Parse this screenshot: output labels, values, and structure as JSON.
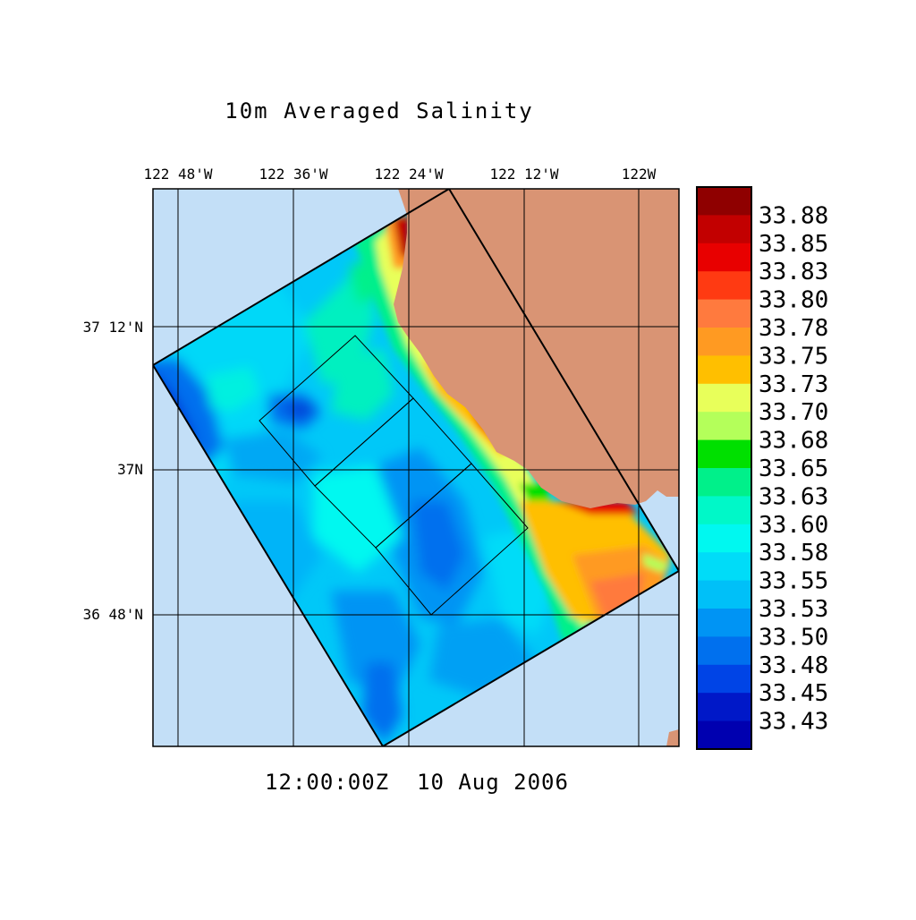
{
  "title": "10m Averaged Salinity",
  "timestamp": "12:00:00Z  10 Aug 2006",
  "lon_labels": [
    "122 48'W",
    "122 36'W",
    "122 24'W",
    "122 12'W",
    "122W"
  ],
  "lat_labels": [
    "37 12'N",
    "37N",
    "36 48'N"
  ],
  "colors": {
    "ocean_background": "#c3dff7",
    "land": "#d99474"
  },
  "colorbar": {
    "labels": [
      "33.88",
      "33.85",
      "33.83",
      "33.80",
      "33.78",
      "33.75",
      "33.73",
      "33.70",
      "33.68",
      "33.65",
      "33.63",
      "33.60",
      "33.58",
      "33.55",
      "33.53",
      "33.50",
      "33.48",
      "33.45",
      "33.43"
    ],
    "colors": [
      "#8f0000",
      "#c20000",
      "#e80000",
      "#ff3a12",
      "#ff7a3e",
      "#ff9a22",
      "#ffbf00",
      "#e8ff5a",
      "#b4ff5a",
      "#00e000",
      "#00f08a",
      "#00f8c8",
      "#00f8f0",
      "#00dcf8",
      "#00c0f8",
      "#0094f4",
      "#0070ee",
      "#0044e6",
      "#0018c8",
      "#0000b0"
    ]
  }
}
